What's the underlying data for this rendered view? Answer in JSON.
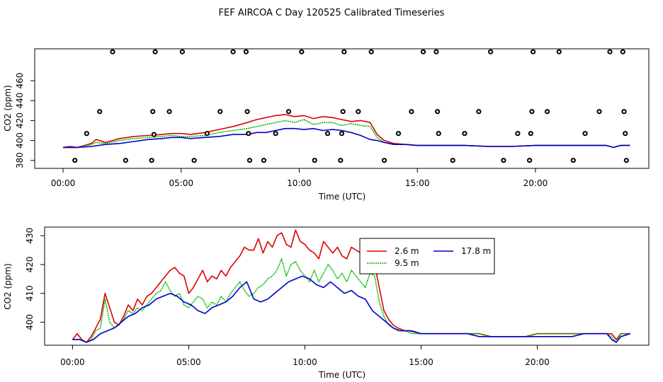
{
  "title": "FEF AIRCOA C  Day 120525  Calibrated Timeseries",
  "colors": {
    "s26": "#dd0000",
    "s95": "#00bb00",
    "s178": "#0000cc"
  },
  "chart_data": [
    {
      "type": "scatter+line",
      "xlabel": "Time (UTC)",
      "ylabel": "CO2 (ppm)",
      "xlim": [
        -1.2,
        24.8
      ],
      "ylim": [
        372,
        492
      ],
      "xticks": [
        0,
        5,
        10,
        15,
        20
      ],
      "xtick_labels": [
        "00:00",
        "05:00",
        "10:00",
        "15:00",
        "20:00"
      ],
      "yticks": [
        380,
        400,
        420,
        440,
        460
      ],
      "ytick_labels": [
        "380",
        "400",
        "420",
        "440",
        "460"
      ],
      "markers": {
        "x": [
          0.5,
          1.0,
          1.55,
          2.1,
          2.65,
          3.75,
          3.8,
          3.85,
          3.9,
          4.5,
          5.05,
          5.55,
          6.1,
          6.65,
          7.2,
          7.75,
          7.8,
          7.85,
          7.9,
          8.5,
          9.0,
          9.55,
          10.1,
          10.65,
          11.2,
          11.75,
          11.8,
          11.85,
          11.9,
          12.5,
          13.05,
          13.6,
          14.2,
          14.75,
          15.25,
          15.8,
          15.85,
          15.9,
          16.5,
          17.0,
          17.6,
          18.1,
          18.65,
          19.25,
          19.75,
          19.8,
          19.85,
          19.9,
          20.5,
          21.0,
          21.6,
          22.1,
          22.7,
          23.15,
          23.7,
          23.75,
          23.8,
          23.85
        ],
        "y": [
          380,
          407,
          429,
          489,
          380,
          380,
          429,
          406,
          489,
          429,
          489,
          380,
          407,
          429,
          489,
          489,
          429,
          407,
          380,
          380,
          407,
          429,
          489,
          380,
          407,
          380,
          407,
          429,
          489,
          429,
          489,
          380,
          407,
          429,
          489,
          489,
          429,
          407,
          380,
          407,
          429,
          489,
          380,
          407,
          380,
          407,
          429,
          489,
          429,
          489,
          380,
          407,
          429,
          489,
          489,
          429,
          407,
          380
        ]
      },
      "series": [
        {
          "name": "2.6 m",
          "color": "#dd0000",
          "x": [
            0,
            0.3,
            0.6,
            1.2,
            1.4,
            1.8,
            2.4,
            3,
            3.6,
            4.2,
            4.6,
            5,
            5.4,
            6,
            6.6,
            7.2,
            7.8,
            8.2,
            8.6,
            9,
            9.4,
            9.8,
            10.2,
            10.6,
            11,
            11.4,
            11.8,
            12.2,
            12.6,
            13,
            13.3,
            13.6,
            14,
            14.5,
            15,
            16,
            17,
            18,
            18.5,
            19,
            20,
            21,
            22,
            23,
            23.3,
            23.6,
            24
          ],
          "y": [
            393,
            394,
            393,
            397,
            401,
            398,
            402,
            404,
            405,
            406,
            407,
            407,
            406,
            408,
            411,
            414,
            418,
            421,
            423,
            425,
            426,
            424,
            425,
            422,
            424,
            423,
            421,
            419,
            420,
            418,
            406,
            400,
            397,
            396,
            395,
            395,
            395,
            394,
            394,
            394,
            395,
            395,
            395,
            395,
            393,
            395,
            395
          ]
        },
        {
          "name": "9.5 m",
          "color": "#00bb00",
          "x": [
            0,
            0.6,
            1.2,
            1.4,
            1.8,
            2.4,
            3,
            3.6,
            4.2,
            4.6,
            5,
            5.4,
            6,
            6.6,
            7.2,
            7.8,
            8.2,
            8.6,
            9,
            9.4,
            9.8,
            10.2,
            10.6,
            11,
            11.4,
            11.8,
            12.2,
            12.6,
            13,
            13.3,
            13.6,
            14,
            14.5,
            15,
            16,
            17,
            18,
            18.5,
            19,
            20,
            21,
            22,
            23,
            23.3,
            23.6,
            24
          ],
          "y": [
            393,
            393,
            396,
            398,
            397,
            400,
            402,
            403,
            404,
            405,
            404,
            404,
            405,
            408,
            410,
            412,
            414,
            416,
            418,
            420,
            418,
            421,
            416,
            418,
            418,
            415,
            417,
            415,
            414,
            403,
            398,
            396,
            396,
            395,
            395,
            395,
            394,
            394,
            394,
            395,
            395,
            395,
            395,
            393,
            395,
            395
          ]
        },
        {
          "name": "17.8 m",
          "color": "#0000cc",
          "x": [
            0,
            0.6,
            1.2,
            1.8,
            2.4,
            3,
            3.6,
            4.2,
            4.6,
            5,
            5.4,
            6,
            6.6,
            7.2,
            7.8,
            8.2,
            8.6,
            9,
            9.4,
            9.8,
            10.2,
            10.6,
            11,
            11.4,
            11.8,
            12.2,
            12.6,
            13,
            13.3,
            13.6,
            14,
            14.5,
            15,
            16,
            17,
            18,
            18.5,
            19,
            20,
            21,
            22,
            23,
            23.3,
            23.6,
            24
          ],
          "y": [
            393,
            393,
            394,
            396,
            397,
            399,
            401,
            402,
            403,
            403,
            402,
            403,
            404,
            406,
            406,
            408,
            408,
            410,
            412,
            412,
            411,
            412,
            410,
            411,
            410,
            408,
            405,
            401,
            400,
            398,
            396,
            396,
            395,
            395,
            395,
            394,
            394,
            394,
            395,
            395,
            395,
            395,
            393,
            395,
            395
          ]
        }
      ]
    },
    {
      "type": "line",
      "xlabel": "Time (UTC)",
      "ylabel": "CO2 (ppm)",
      "xlim": [
        -1.2,
        24.8
      ],
      "ylim": [
        392,
        433
      ],
      "xticks": [
        0,
        5,
        10,
        15,
        20
      ],
      "xtick_labels": [
        "00:00",
        "05:00",
        "10:00",
        "15:00",
        "20:00"
      ],
      "yticks": [
        400,
        410,
        420,
        430
      ],
      "ytick_labels": [
        "400",
        "410",
        "420",
        "430"
      ],
      "legend": {
        "position": "top-right-inset",
        "entries": [
          "2.6 m",
          "9.5 m",
          "17.8 m"
        ]
      },
      "series": [
        {
          "name": "2.6 m",
          "color": "#dd0000",
          "x": [
            0,
            0.2,
            0.4,
            0.6,
            0.8,
            1,
            1.2,
            1.4,
            1.6,
            1.8,
            2,
            2.2,
            2.4,
            2.6,
            2.8,
            3,
            3.2,
            3.4,
            3.6,
            3.8,
            4,
            4.2,
            4.4,
            4.6,
            4.8,
            5,
            5.2,
            5.4,
            5.6,
            5.8,
            6,
            6.2,
            6.4,
            6.6,
            6.8,
            7,
            7.2,
            7.4,
            7.6,
            7.8,
            8,
            8.2,
            8.4,
            8.6,
            8.8,
            9,
            9.2,
            9.4,
            9.6,
            9.8,
            10,
            10.2,
            10.4,
            10.6,
            10.8,
            11,
            11.2,
            11.4,
            11.6,
            11.8,
            12,
            12.2,
            12.4,
            12.6,
            12.8,
            13,
            13.2,
            13.4,
            13.6,
            13.8,
            14,
            14.3,
            14.6,
            15,
            15.5,
            16,
            16.5,
            17,
            17.5,
            18,
            18.5,
            19,
            19.5,
            20,
            20.5,
            21,
            21.5,
            22,
            22.5,
            23,
            23.2,
            23.4,
            23.6,
            24
          ],
          "y": [
            394,
            396,
            394,
            393,
            395,
            398,
            401,
            410,
            405,
            400,
            399,
            402,
            406,
            404,
            408,
            406,
            409,
            410,
            412,
            414,
            416,
            418,
            419,
            417,
            416,
            410,
            412,
            415,
            418,
            414,
            416,
            415,
            418,
            416,
            419,
            421,
            423,
            426,
            425,
            425,
            429,
            424,
            428,
            426,
            430,
            431,
            427,
            426,
            432,
            428,
            427,
            425,
            424,
            422,
            428,
            426,
            424,
            426,
            423,
            422,
            426,
            425,
            424,
            419,
            423,
            420,
            412,
            404,
            401,
            399,
            398,
            397,
            397,
            396,
            396,
            396,
            396,
            396,
            396,
            395,
            395,
            395,
            395,
            396,
            396,
            396,
            396,
            396,
            396,
            396,
            396,
            394,
            396,
            396
          ]
        },
        {
          "name": "9.5 m",
          "color": "#00bb00",
          "x": [
            0,
            0.2,
            0.4,
            0.6,
            0.8,
            1,
            1.2,
            1.4,
            1.6,
            1.8,
            2,
            2.2,
            2.4,
            2.6,
            2.8,
            3,
            3.2,
            3.4,
            3.6,
            3.8,
            4,
            4.2,
            4.4,
            4.6,
            4.8,
            5,
            5.2,
            5.4,
            5.6,
            5.8,
            6,
            6.2,
            6.4,
            6.6,
            6.8,
            7,
            7.2,
            7.4,
            7.6,
            7.8,
            8,
            8.2,
            8.4,
            8.6,
            8.8,
            9,
            9.2,
            9.4,
            9.6,
            9.8,
            10,
            10.2,
            10.4,
            10.6,
            10.8,
            11,
            11.2,
            11.4,
            11.6,
            11.8,
            12,
            12.2,
            12.4,
            12.6,
            12.8,
            13,
            13.2,
            13.4,
            13.6,
            13.8,
            14,
            14.3,
            14.6,
            15,
            15.5,
            16,
            16.5,
            17,
            17.5,
            18,
            18.5,
            19,
            19.5,
            20,
            20.5,
            21,
            21.5,
            22,
            22.5,
            23,
            23.2,
            23.4,
            23.6,
            24
          ],
          "y": [
            394,
            394,
            394,
            393,
            394,
            397,
            398,
            408,
            400,
            398,
            399,
            401,
            404,
            403,
            405,
            404,
            406,
            408,
            410,
            411,
            414,
            411,
            409,
            410,
            406,
            405,
            407,
            409,
            408,
            405,
            407,
            406,
            409,
            407,
            410,
            412,
            414,
            411,
            409,
            410,
            412,
            413,
            415,
            416,
            418,
            422,
            416,
            420,
            421,
            418,
            416,
            414,
            418,
            414,
            417,
            420,
            418,
            415,
            417,
            414,
            418,
            416,
            414,
            412,
            417,
            416,
            407,
            402,
            399,
            398,
            397,
            397,
            396,
            396,
            396,
            396,
            396,
            396,
            396,
            395,
            395,
            395,
            395,
            396,
            396,
            396,
            396,
            396,
            396,
            396,
            395,
            393,
            396,
            396
          ]
        },
        {
          "name": "17.8 m",
          "color": "#0000cc",
          "x": [
            0,
            0.3,
            0.6,
            0.9,
            1.2,
            1.5,
            1.8,
            2.1,
            2.4,
            2.7,
            3,
            3.3,
            3.6,
            3.9,
            4.2,
            4.5,
            4.8,
            5.1,
            5.4,
            5.7,
            6,
            6.3,
            6.6,
            6.9,
            7.2,
            7.5,
            7.8,
            8.1,
            8.4,
            8.7,
            9,
            9.3,
            9.6,
            9.9,
            10.2,
            10.5,
            10.8,
            11.1,
            11.4,
            11.7,
            12,
            12.3,
            12.6,
            12.9,
            13.2,
            13.5,
            13.8,
            14.1,
            14.5,
            15,
            15.5,
            16,
            16.5,
            17,
            17.5,
            18,
            18.5,
            19,
            19.5,
            20,
            20.5,
            21,
            21.5,
            22,
            22.5,
            23,
            23.2,
            23.4,
            23.6,
            24
          ],
          "y": [
            394,
            394,
            393,
            394,
            396,
            397,
            398,
            400,
            402,
            403,
            405,
            406,
            408,
            409,
            410,
            409,
            407,
            406,
            404,
            403,
            405,
            406,
            407,
            409,
            412,
            414,
            408,
            407,
            408,
            410,
            412,
            414,
            415,
            416,
            415,
            413,
            412,
            414,
            412,
            410,
            411,
            409,
            408,
            404,
            402,
            400,
            398,
            397,
            397,
            396,
            396,
            396,
            396,
            396,
            395,
            395,
            395,
            395,
            395,
            395,
            395,
            395,
            395,
            396,
            396,
            396,
            394,
            393,
            395,
            396
          ]
        }
      ]
    }
  ]
}
